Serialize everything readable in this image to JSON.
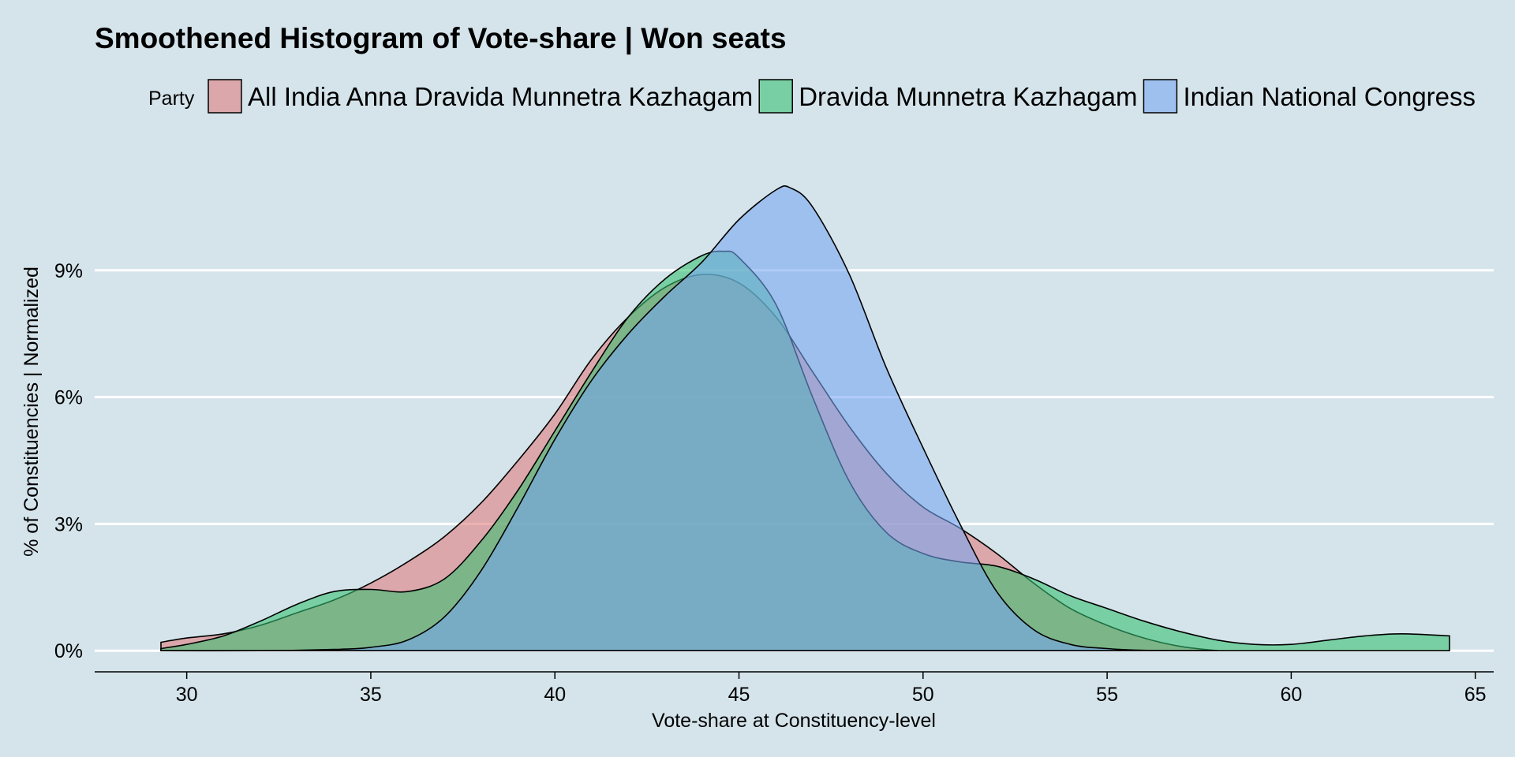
{
  "chart_data": {
    "type": "area",
    "title": "Smoothened Histogram of Vote-share |  Won seats",
    "xlabel": "Vote-share at Constituency-level",
    "ylabel": "% of Constituencies | Normalized",
    "legend_title": "Party",
    "legend_position": "top",
    "xlim": [
      27.5,
      65.5
    ],
    "ylim": [
      -0.5,
      12
    ],
    "x_ticks": [
      30,
      35,
      40,
      45,
      50,
      55,
      60,
      65
    ],
    "x_tick_labels": [
      "30",
      "35",
      "40",
      "45",
      "50",
      "55",
      "60",
      "65"
    ],
    "y_ticks": [
      0,
      3,
      6,
      9
    ],
    "y_tick_labels": [
      "0%",
      "3%",
      "6%",
      "9%"
    ],
    "grid": "horizontal",
    "series": [
      {
        "name": "All India Anna Dravida Munnetra Kazhagam",
        "color": "#e07a7a",
        "x": [
          29.3,
          30,
          31,
          32,
          33,
          34,
          35,
          36,
          37,
          38,
          39,
          40,
          41,
          42,
          43,
          44,
          45,
          46,
          47,
          48,
          49,
          50,
          51,
          52,
          53,
          54,
          55,
          56,
          57,
          58
        ],
        "y": [
          0.2,
          0.3,
          0.4,
          0.6,
          0.9,
          1.2,
          1.6,
          2.1,
          2.7,
          3.5,
          4.5,
          5.6,
          6.9,
          7.9,
          8.6,
          8.9,
          8.7,
          7.9,
          6.6,
          5.3,
          4.2,
          3.4,
          2.9,
          2.3,
          1.6,
          1.0,
          0.6,
          0.3,
          0.1,
          0.0
        ]
      },
      {
        "name": "Dravida Munnetra Kazhagam",
        "color": "#36c070",
        "x": [
          29.3,
          30,
          31,
          32,
          33,
          34,
          35,
          36,
          37,
          38,
          39,
          40,
          41,
          42,
          43,
          44,
          44.6,
          45,
          46,
          47,
          48,
          49,
          50,
          51,
          52,
          53,
          54,
          55,
          56,
          57,
          58,
          59,
          60,
          61,
          62,
          63,
          64.3
        ],
        "y": [
          0.05,
          0.15,
          0.35,
          0.7,
          1.1,
          1.4,
          1.45,
          1.4,
          1.7,
          2.6,
          3.8,
          5.2,
          6.6,
          7.9,
          8.8,
          9.35,
          9.45,
          9.3,
          8.2,
          6.0,
          4.0,
          2.8,
          2.3,
          2.1,
          2.0,
          1.7,
          1.3,
          1.0,
          0.7,
          0.45,
          0.25,
          0.15,
          0.15,
          0.25,
          0.35,
          0.4,
          0.35
        ]
      },
      {
        "name": "Indian National Congress",
        "color": "#77a6f2",
        "x": [
          29.3,
          32,
          34,
          35,
          36,
          37,
          38,
          39,
          40,
          41,
          42,
          43,
          44,
          45,
          46,
          46.4,
          47,
          48,
          49,
          50,
          51,
          52,
          53,
          54,
          55,
          56,
          57,
          58
        ],
        "y": [
          0.0,
          0.0,
          0.03,
          0.08,
          0.25,
          0.8,
          1.9,
          3.4,
          5.0,
          6.4,
          7.5,
          8.4,
          9.2,
          10.2,
          10.9,
          10.95,
          10.5,
          8.9,
          6.7,
          4.8,
          3.0,
          1.4,
          0.5,
          0.15,
          0.05,
          0.01,
          0.0,
          0.0
        ]
      }
    ]
  }
}
